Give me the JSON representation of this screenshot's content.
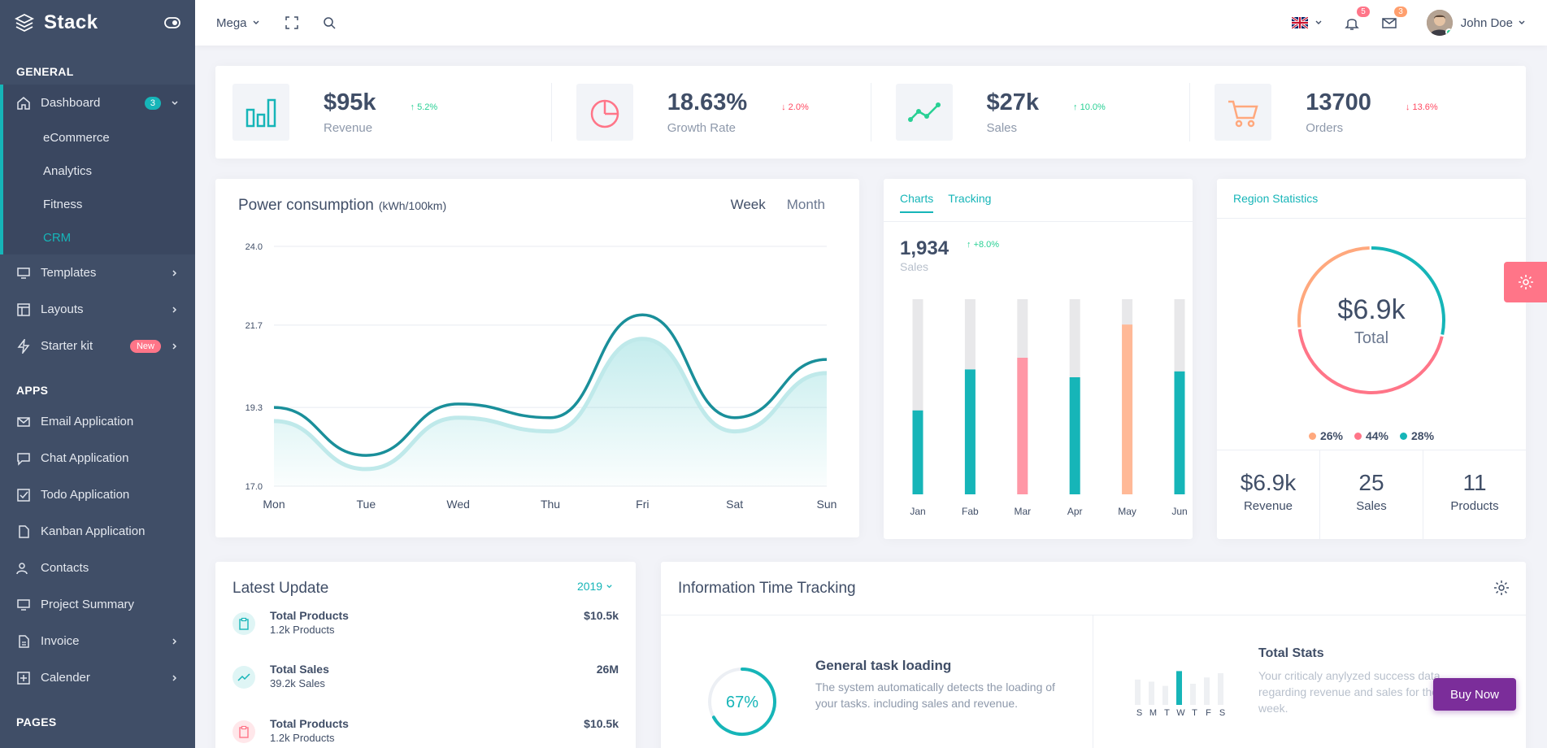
{
  "brand": {
    "name": "Stack"
  },
  "sidebar": {
    "sections": {
      "general": "GENERAL",
      "apps": "APPS",
      "pages": "PAGES"
    },
    "dashboard": {
      "label": "Dashboard",
      "badge": "3"
    },
    "dashboard_sub": [
      "eCommerce",
      "Analytics",
      "Fitness",
      "CRM"
    ],
    "templates": "Templates",
    "layouts": "Layouts",
    "starter": {
      "label": "Starter kit",
      "badge": "New"
    },
    "apps": [
      "Email Application",
      "Chat Application",
      "Todo Application",
      "Kanban Application",
      "Contacts",
      "Project Summary",
      "Invoice",
      "Calender"
    ]
  },
  "topbar": {
    "mega": "Mega",
    "notifications_count": "5",
    "messages_count": "3",
    "user_name": "John Doe"
  },
  "stats": [
    {
      "value": "$95k",
      "label": "Revenue",
      "delta": "5.2%",
      "dir": "up",
      "icon": "bar-chart-icon"
    },
    {
      "value": "18.63%",
      "label": "Growth Rate",
      "delta": "2.0%",
      "dir": "down",
      "icon": "pie-chart-icon"
    },
    {
      "value": "$27k",
      "label": "Sales",
      "delta": "10.0%",
      "dir": "up",
      "icon": "trend-line-icon"
    },
    {
      "value": "13700",
      "label": "Orders",
      "delta": "13.6%",
      "dir": "down",
      "icon": "cart-icon"
    }
  ],
  "power": {
    "title": "Power consumption",
    "unit": "(kWh/100km)",
    "tab_week": "Week",
    "tab_month": "Month"
  },
  "sales_card": {
    "tab_charts": "Charts",
    "tab_tracking": "Tracking",
    "value": "1,934",
    "delta": "+8.0%",
    "label": "Sales"
  },
  "region": {
    "title": "Region Statistics",
    "center_value": "$6.9k",
    "center_label": "Total",
    "legend": [
      {
        "label": "26%",
        "color": "#ffa87d"
      },
      {
        "label": "44%",
        "color": "#ff7588"
      },
      {
        "label": "28%",
        "color": "#16b5b8"
      }
    ],
    "footer": [
      {
        "value": "$6.9k",
        "label": "Revenue"
      },
      {
        "value": "25",
        "label": "Sales"
      },
      {
        "value": "11",
        "label": "Products"
      }
    ]
  },
  "latest": {
    "title": "Latest Update",
    "year": "2019",
    "rows": [
      {
        "title": "Total Products",
        "sub": "1.2k Products",
        "value": "$10.5k"
      },
      {
        "title": "Total Sales",
        "sub": "39.2k Sales",
        "value": "26M"
      },
      {
        "title": "Total Products",
        "sub": "1.2k Products",
        "value": "$10.5k"
      }
    ]
  },
  "tracking": {
    "title": "Information Time Tracking",
    "percent": "67%",
    "percent_value": 0.67,
    "task_title": "General task loading",
    "task_desc": "The system automatically detects the loading of your tasks. including sales and revenue.",
    "stats_title": "Total Stats",
    "stats_desc": "Your criticaly anylyzed success data regarding revenue and sales for the week.",
    "days": [
      "S",
      "M",
      "T",
      "W",
      "T",
      "F",
      "S"
    ]
  },
  "buy_now": "Buy Now",
  "colors": {
    "teal": "#16b5b8",
    "pink": "#ff7588",
    "orange": "#ffa87d",
    "sidebar": "#404e67"
  },
  "chart_data": [
    {
      "type": "area",
      "title": "Power consumption",
      "categories": [
        "Mon",
        "Tue",
        "Wed",
        "Thu",
        "Fri",
        "Sat",
        "Sun"
      ],
      "series": [
        {
          "values": [
            19.3,
            17.9,
            19.4,
            19.0,
            22.0,
            19.0,
            20.7
          ]
        },
        {
          "values": [
            18.9,
            17.5,
            19.0,
            18.6,
            21.3,
            18.6,
            20.3
          ]
        }
      ],
      "yticks": [
        "24.0",
        "21.7",
        "19.3",
        "17.0"
      ],
      "ylim": [
        17.0,
        24.0
      ]
    },
    {
      "type": "bar",
      "categories": [
        "Jan",
        "Fab",
        "Mar",
        "Apr",
        "May",
        "Jun"
      ],
      "values": [
        43,
        64,
        70,
        60,
        87,
        63
      ],
      "colors": [
        "#16b5b8",
        "#16b5b8",
        "#ff97a6",
        "#16b5b8",
        "#ffb997",
        "#16b5b8"
      ],
      "ylim": [
        0,
        100
      ]
    },
    {
      "type": "pie",
      "values": [
        26,
        44,
        28
      ],
      "labels": [
        "26%",
        "44%",
        "28%"
      ],
      "colors": [
        "#ffa87d",
        "#ff7588",
        "#16b5b8"
      ]
    },
    {
      "type": "bar",
      "categories": [
        "S",
        "M",
        "T",
        "W",
        "T",
        "F",
        "S"
      ],
      "values": [
        60,
        55,
        45,
        80,
        50,
        65,
        75
      ],
      "highlight": 3
    }
  ]
}
